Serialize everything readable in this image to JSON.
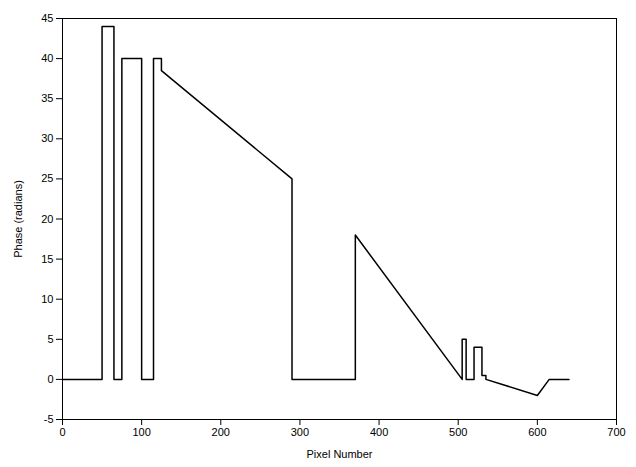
{
  "chart_data": {
    "type": "line",
    "xlabel": "Pixel Number",
    "ylabel": "Phase (radians)",
    "x": [
      0,
      50,
      50,
      65,
      65,
      75,
      75,
      100,
      100,
      115,
      115,
      125,
      125,
      290,
      290,
      370,
      370,
      505,
      505,
      510,
      510,
      520,
      520,
      530,
      530,
      535,
      535,
      600,
      600,
      615,
      615,
      640
    ],
    "values": [
      0,
      0,
      44,
      44,
      0,
      0,
      40,
      40,
      0,
      0,
      40,
      40,
      38.5,
      25,
      0,
      0,
      18,
      0,
      5,
      5,
      0,
      0,
      4,
      4,
      0.5,
      0.5,
      0,
      -2,
      -2,
      0,
      0,
      0
    ],
    "color": "#000000",
    "xlim": [
      0,
      700
    ],
    "ylim": [
      -5,
      45
    ],
    "xticks": [
      0,
      100,
      200,
      300,
      400,
      500,
      600,
      700
    ],
    "yticks": [
      -5,
      0,
      5,
      10,
      15,
      20,
      25,
      30,
      35,
      40,
      45
    ],
    "grid": false
  }
}
